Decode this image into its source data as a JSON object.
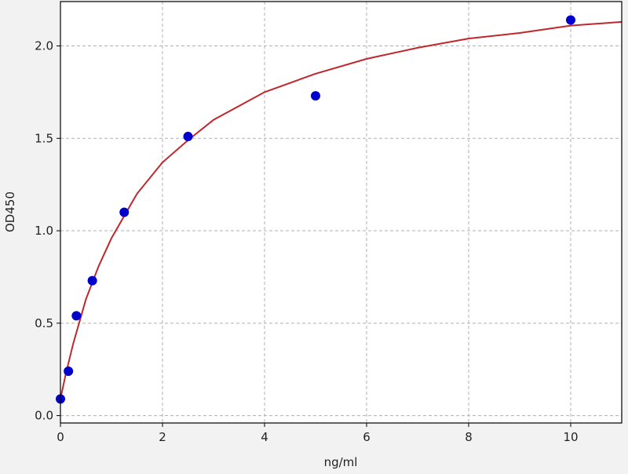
{
  "chart_data": {
    "type": "scatter",
    "title": "",
    "xlabel": "ng/ml",
    "ylabel": "OD450",
    "xlim": [
      0,
      11
    ],
    "ylim": [
      -0.04,
      2.24
    ],
    "xticks": [
      0,
      2,
      4,
      6,
      8,
      10
    ],
    "xtick_labels": [
      "0",
      "2",
      "4",
      "6",
      "8",
      "10"
    ],
    "yticks": [
      0.0,
      0.5,
      1.0,
      1.5,
      2.0
    ],
    "ytick_labels": [
      "0.0",
      "0.5",
      "1.0",
      "1.5",
      "2.0"
    ],
    "grid": true,
    "series": [
      {
        "kind": "points",
        "color": "#0000cc",
        "x": [
          0,
          0.156,
          0.3125,
          0.625,
          1.25,
          2.5,
          5,
          10
        ],
        "y": [
          0.09,
          0.24,
          0.54,
          0.73,
          1.1,
          1.51,
          1.73,
          2.14
        ]
      },
      {
        "kind": "fit-curve",
        "color": "#c0272d",
        "x": [
          0,
          0.1,
          0.25,
          0.5,
          0.75,
          1,
          1.5,
          2,
          2.5,
          3,
          4,
          5,
          6,
          7,
          8,
          9,
          10,
          11
        ],
        "y": [
          0.09,
          0.22,
          0.39,
          0.63,
          0.81,
          0.96,
          1.2,
          1.37,
          1.49,
          1.6,
          1.75,
          1.85,
          1.93,
          1.99,
          2.04,
          2.07,
          2.11,
          2.13
        ]
      }
    ]
  }
}
